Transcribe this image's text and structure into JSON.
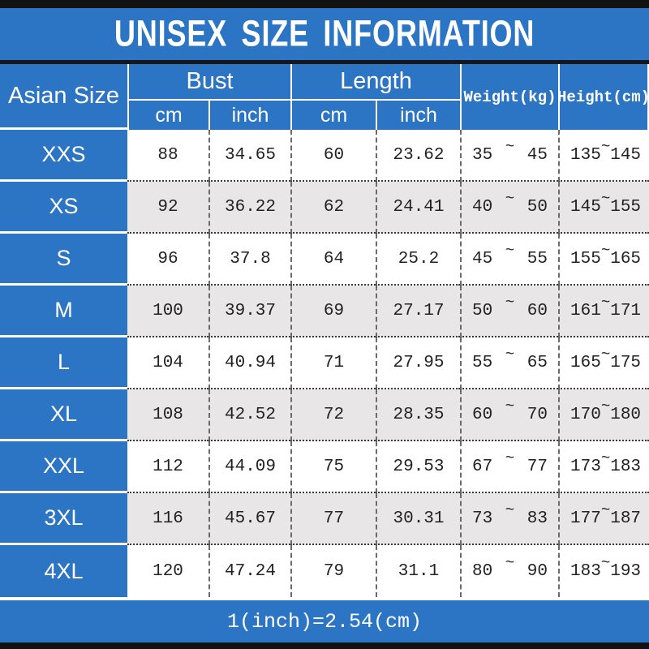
{
  "title": "UNISEX SIZE INFORMATION",
  "footer": {
    "note": "1(inch)=2.54(cm)"
  },
  "colors": {
    "accent_blue": "#2c74c4",
    "row_alt_gray": "#e8e6e7",
    "bar_black": "#121212",
    "text_white": "#ffffff",
    "text_dark": "#222222"
  },
  "header": {
    "corner": "Asian Size",
    "bust": "Bust",
    "length": "Length",
    "cm": "cm",
    "inch": "inch",
    "weight": "Weight(kg)",
    "height": "Height(cm)",
    "tilde": "~"
  },
  "chart_data": {
    "type": "table",
    "title": "UNISEX SIZE INFORMATION",
    "columns": [
      "Asian Size",
      "Bust cm",
      "Bust inch",
      "Length cm",
      "Length inch",
      "Weight(kg)",
      "Height(cm)"
    ],
    "rows": [
      {
        "size": "XXS",
        "bust_cm": "88",
        "bust_inch": "34.65",
        "length_cm": "60",
        "length_inch": "23.62",
        "weight_min": "35",
        "weight_max": "45",
        "height_min": "135",
        "height_max": "145"
      },
      {
        "size": "XS",
        "bust_cm": "92",
        "bust_inch": "36.22",
        "length_cm": "62",
        "length_inch": "24.41",
        "weight_min": "40",
        "weight_max": "50",
        "height_min": "145",
        "height_max": "155"
      },
      {
        "size": "S",
        "bust_cm": "96",
        "bust_inch": "37.8",
        "length_cm": "64",
        "length_inch": "25.2",
        "weight_min": "45",
        "weight_max": "55",
        "height_min": "155",
        "height_max": "165"
      },
      {
        "size": "M",
        "bust_cm": "100",
        "bust_inch": "39.37",
        "length_cm": "69",
        "length_inch": "27.17",
        "weight_min": "50",
        "weight_max": "60",
        "height_min": "161",
        "height_max": "171"
      },
      {
        "size": "L",
        "bust_cm": "104",
        "bust_inch": "40.94",
        "length_cm": "71",
        "length_inch": "27.95",
        "weight_min": "55",
        "weight_max": "65",
        "height_min": "165",
        "height_max": "175"
      },
      {
        "size": "XL",
        "bust_cm": "108",
        "bust_inch": "42.52",
        "length_cm": "72",
        "length_inch": "28.35",
        "weight_min": "60",
        "weight_max": "70",
        "height_min": "170",
        "height_max": "180"
      },
      {
        "size": "XXL",
        "bust_cm": "112",
        "bust_inch": "44.09",
        "length_cm": "75",
        "length_inch": "29.53",
        "weight_min": "67",
        "weight_max": "77",
        "height_min": "173",
        "height_max": "183"
      },
      {
        "size": "3XL",
        "bust_cm": "116",
        "bust_inch": "45.67",
        "length_cm": "77",
        "length_inch": "30.31",
        "weight_min": "73",
        "weight_max": "83",
        "height_min": "177",
        "height_max": "187"
      },
      {
        "size": "4XL",
        "bust_cm": "120",
        "bust_inch": "47.24",
        "length_cm": "79",
        "length_inch": "31.1",
        "weight_min": "80",
        "weight_max": "90",
        "height_min": "183",
        "height_max": "193"
      }
    ]
  }
}
